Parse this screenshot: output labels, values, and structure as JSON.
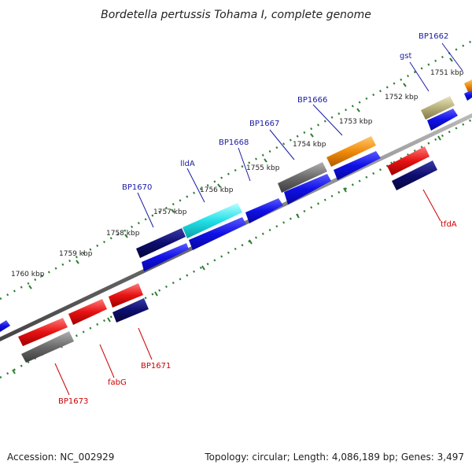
{
  "title": "Bordetella pertussis Tohama I, complete genome",
  "footer": {
    "accession": "Accession: NC_002929",
    "summary": "Topology: circular; Length: 4,086,189 bp; Genes: 3,497"
  },
  "ticks": [
    "1760 kbp",
    "1759 kbp",
    "1758 kbp",
    "1757 kbp",
    "1756 kbp",
    "1755 kbp",
    "1754 kbp",
    "1753 kbp",
    "1752 kbp",
    "1751 kbp"
  ],
  "genes": {
    "BP1662": "BP1662",
    "gst": "gst",
    "BP1666": "BP1666",
    "BP1667": "BP1667",
    "BP1668": "BP1668",
    "lldA": "lldA",
    "BP1670": "BP1670",
    "tfdA": "tfdA",
    "BP1671": "BP1671",
    "fabG": "fabG",
    "BP1673": "BP1673"
  },
  "colors": {
    "forward_label": "#1a1aa6",
    "reverse_label": "#cc0000",
    "tick_mark": "#2e7d32",
    "backbone": "#777777",
    "blue": "#1010e6",
    "navy": "#0d0d6e",
    "red": "#e61212",
    "gray": "#6a6a6a",
    "cyan": "#22e0e8",
    "orange": "#f08c0a",
    "khaki": "#b8b07a"
  }
}
